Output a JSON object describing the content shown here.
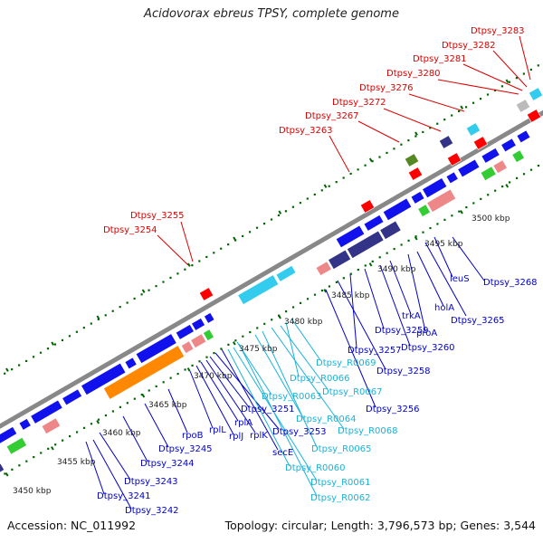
{
  "title": "Acidovorax ebreus TPSY, complete genome",
  "footer": {
    "accession": "Accession: NC_011992",
    "topology": "Topology: circular; Length: 3,796,573 bp; Genes: 3,544"
  },
  "colors": {
    "backbone": "#888888",
    "tick": "#006600",
    "red_label": "#dd0000",
    "blue_label": "#0000cc",
    "cyan_label": "#19b3d9",
    "gene_blue": "#1111ee",
    "gene_cyan": "#33ccee",
    "gene_orange": "#ff8800",
    "gene_pink": "#ee8888",
    "gene_green": "#33cc33",
    "gene_navy": "#333388",
    "gene_red": "#ff0000",
    "gene_olive": "#558822"
  },
  "kbp_labels": [
    "3450 kbp",
    "3455 kbp",
    "3460 kbp",
    "3465 kbp",
    "3470 kbp",
    "3475 kbp",
    "3480 kbp",
    "3485 kbp",
    "3490 kbp",
    "3495 kbp",
    "3500 kbp"
  ],
  "red_genes": [
    "Dtpsy_3283",
    "Dtpsy_3282",
    "Dtpsy_3281",
    "Dtpsy_3280",
    "Dtpsy_3276",
    "Dtpsy_3272",
    "Dtpsy_3267",
    "Dtpsy_3263",
    "Dtpsy_3255",
    "Dtpsy_3254"
  ],
  "blue_genes": [
    "Dtpsy_3268",
    "leuS",
    "Dtpsy_3265",
    "holA",
    "proA",
    "trkA",
    "Dtpsy_3260",
    "Dtpsy_3259",
    "Dtpsy_3257",
    "Dtpsy_3258",
    "Dtpsy_3256",
    "Dtpsy_3251",
    "Dtpsy_3253",
    "rplA",
    "rplK",
    "rplJ",
    "rplL",
    "secE",
    "rpoB",
    "Dtpsy_3245",
    "Dtpsy_3244",
    "Dtpsy_3243",
    "Dtpsy_3241",
    "Dtpsy_3242"
  ],
  "cyan_genes": [
    "Dtpsy_R0069",
    "Dtpsy_R0066",
    "Dtpsy_R0067",
    "Dtpsy_R0063",
    "Dtpsy_R0064",
    "Dtpsy_R0068",
    "Dtpsy_R0065",
    "Dtpsy_R0060",
    "Dtpsy_R0061",
    "Dtpsy_R0062"
  ]
}
